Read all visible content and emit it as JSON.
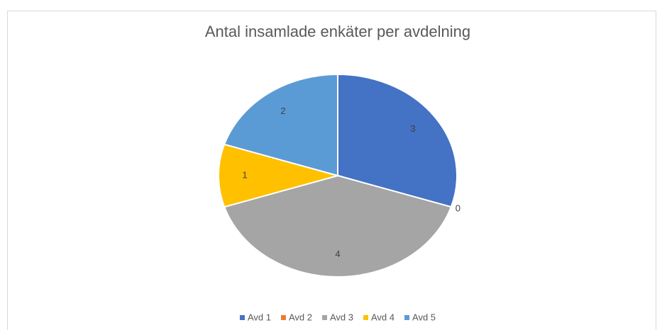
{
  "chart_data": {
    "type": "pie",
    "title": "Antal insamlade enkäter per avdelning",
    "categories": [
      "Avd 1",
      "Avd 2",
      "Avd 3",
      "Avd 4",
      "Avd 5"
    ],
    "values": [
      3,
      0,
      4,
      1,
      2
    ],
    "colors": [
      "#4472c4",
      "#ed7d31",
      "#a5a5a5",
      "#ffc000",
      "#5b9bd5"
    ],
    "legend": "bottom"
  }
}
